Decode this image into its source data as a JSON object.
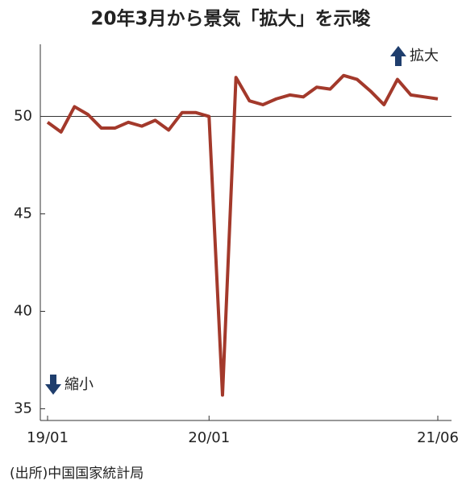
{
  "chart_data": {
    "type": "line",
    "title": "20年3月から景気「拡大」を示唆",
    "source": "(出所)中国国家統計局",
    "upper_note": "拡大",
    "lower_note": "縮小",
    "categories": [
      "19/01",
      null,
      null,
      null,
      null,
      null,
      null,
      null,
      null,
      null,
      null,
      null,
      "20/01",
      null,
      null,
      null,
      null,
      null,
      null,
      null,
      null,
      null,
      null,
      null,
      null,
      null,
      null,
      null,
      null,
      "21/06"
    ],
    "series": [
      {
        "color": "#a3392b",
        "values": [
          49.7,
          49.2,
          50.5,
          50.1,
          49.4,
          49.4,
          49.7,
          49.5,
          49.8,
          49.3,
          50.2,
          50.2,
          50.0,
          35.7,
          52.0,
          50.8,
          50.6,
          50.9,
          51.1,
          51.0,
          51.5,
          51.4,
          52.1,
          51.9,
          51.3,
          50.6,
          51.9,
          51.1,
          51.0,
          50.9
        ]
      }
    ],
    "ylim": [
      34.4,
      53.7
    ],
    "yticks": [
      35,
      40,
      45,
      50
    ],
    "reference_line": 50
  }
}
